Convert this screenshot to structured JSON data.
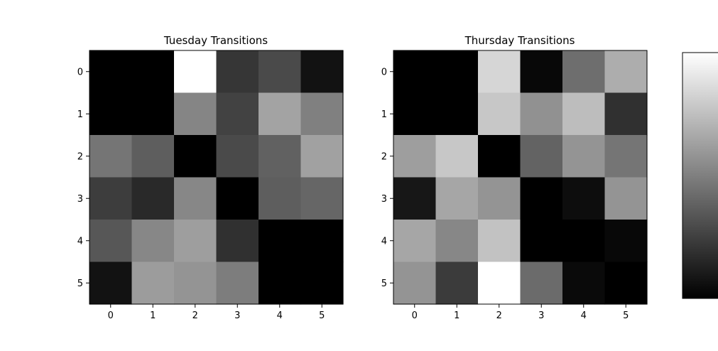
{
  "chart_data": [
    {
      "type": "heatmap",
      "title": "Tuesday Transitions",
      "x_ticks": [
        "0",
        "1",
        "2",
        "3",
        "4",
        "5"
      ],
      "y_ticks": [
        "0",
        "1",
        "2",
        "3",
        "4",
        "5"
      ],
      "colormap": "gray",
      "values": [
        [
          0.0,
          0.0,
          1.0,
          0.21,
          0.29,
          0.07
        ],
        [
          0.0,
          0.0,
          0.52,
          0.26,
          0.64,
          0.5
        ],
        [
          0.46,
          0.37,
          0.0,
          0.29,
          0.38,
          0.63
        ],
        [
          0.24,
          0.16,
          0.53,
          0.0,
          0.37,
          0.4
        ],
        [
          0.34,
          0.53,
          0.62,
          0.19,
          0.0,
          0.0
        ],
        [
          0.07,
          0.61,
          0.58,
          0.49,
          0.0,
          0.0
        ]
      ]
    },
    {
      "type": "heatmap",
      "title": "Thursday Transitions",
      "x_ticks": [
        "0",
        "1",
        "2",
        "3",
        "4",
        "5"
      ],
      "y_ticks": [
        "0",
        "1",
        "2",
        "3",
        "4",
        "5"
      ],
      "colormap": "gray",
      "values": [
        [
          0.0,
          0.0,
          0.84,
          0.03,
          0.43,
          0.68
        ],
        [
          0.0,
          0.0,
          0.78,
          0.57,
          0.74,
          0.19
        ],
        [
          0.62,
          0.78,
          0.0,
          0.39,
          0.58,
          0.46
        ],
        [
          0.09,
          0.65,
          0.58,
          0.0,
          0.05,
          0.58
        ],
        [
          0.65,
          0.53,
          0.76,
          0.0,
          0.0,
          0.03
        ],
        [
          0.58,
          0.23,
          1.0,
          0.42,
          0.04,
          0.0
        ]
      ]
    }
  ],
  "colorbar": {
    "colormap": "gray",
    "range": [
      0,
      1
    ]
  }
}
